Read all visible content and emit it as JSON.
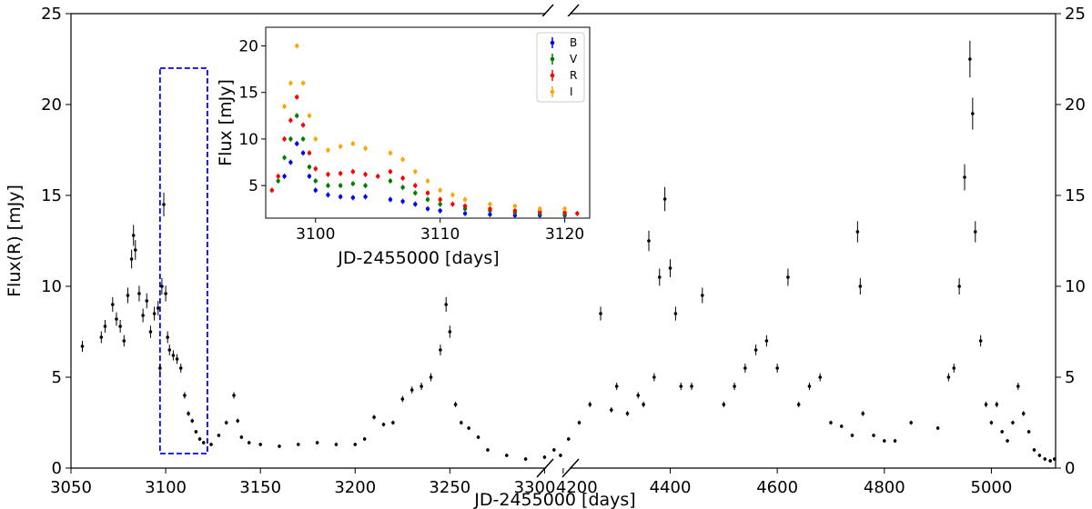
{
  "chart_data": [
    {
      "type": "scatter",
      "xlabel": "JD-2455000 [days]",
      "ylabel": "Flux(R) [mJy]",
      "ylim": [
        0,
        25
      ],
      "yticks": [
        0,
        5,
        10,
        15,
        20,
        25
      ],
      "broken_x_axis": true,
      "x_segments": [
        {
          "xlim": [
            3050,
            3307
          ],
          "xticks": [
            3050,
            3100,
            3150,
            3200,
            3250,
            3300
          ]
        },
        {
          "xlim": [
            4190,
            5120
          ],
          "xticks": [
            4200,
            4400,
            4600,
            4800,
            5000
          ]
        }
      ],
      "highlight_box": {
        "x": [
          3097,
          3122
        ],
        "y": [
          0.8,
          22.0
        ],
        "color": "#0000ff",
        "style": "dashed"
      },
      "series": [
        {
          "color": "#000000",
          "points": [
            [
              3056,
              6.7
            ],
            [
              3066,
              7.2
            ],
            [
              3068,
              7.8
            ],
            [
              3072,
              9.0
            ],
            [
              3074,
              8.2
            ],
            [
              3076,
              7.8
            ],
            [
              3078,
              7.0
            ],
            [
              3080,
              9.5
            ],
            [
              3082,
              11.5
            ],
            [
              3083,
              12.8
            ],
            [
              3084,
              12.0
            ],
            [
              3086,
              9.6
            ],
            [
              3088,
              8.4
            ],
            [
              3090,
              9.2
            ],
            [
              3092,
              7.5
            ],
            [
              3094,
              8.5
            ],
            [
              3096,
              8.8
            ],
            [
              3097,
              5.5
            ],
            [
              3098,
              10.0
            ],
            [
              3099,
              14.5
            ],
            [
              3100,
              9.6
            ],
            [
              3101,
              7.2
            ],
            [
              3102,
              6.5
            ],
            [
              3104,
              6.2
            ],
            [
              3106,
              6.0
            ],
            [
              3108,
              5.5
            ],
            [
              3110,
              4.0
            ],
            [
              3112,
              3.0
            ],
            [
              3114,
              2.6
            ],
            [
              3116,
              2.0
            ],
            [
              3118,
              1.6
            ],
            [
              3120,
              1.4
            ],
            [
              3124,
              1.3
            ],
            [
              3128,
              1.8
            ],
            [
              3132,
              2.5
            ],
            [
              3136,
              4.0
            ],
            [
              3138,
              2.6
            ],
            [
              3140,
              1.7
            ],
            [
              3144,
              1.4
            ],
            [
              3150,
              1.3
            ],
            [
              3160,
              1.2
            ],
            [
              3170,
              1.3
            ],
            [
              3180,
              1.4
            ],
            [
              3190,
              1.3
            ],
            [
              3200,
              1.3
            ],
            [
              3205,
              1.6
            ],
            [
              3210,
              2.8
            ],
            [
              3215,
              2.4
            ],
            [
              3220,
              2.5
            ],
            [
              3225,
              3.8
            ],
            [
              3230,
              4.3
            ],
            [
              3235,
              4.5
            ],
            [
              3240,
              5.0
            ],
            [
              3245,
              6.5
            ],
            [
              3248,
              9.0
            ],
            [
              3250,
              7.5
            ],
            [
              3253,
              3.5
            ],
            [
              3256,
              2.5
            ],
            [
              3260,
              2.2
            ],
            [
              3265,
              1.7
            ],
            [
              3270,
              1.0
            ],
            [
              3280,
              0.7
            ],
            [
              3290,
              0.5
            ],
            [
              3300,
              0.6
            ],
            [
              3305,
              1.0
            ],
            [
              4195,
              0.7
            ],
            [
              4210,
              1.6
            ],
            [
              4230,
              2.5
            ],
            [
              4250,
              3.5
            ],
            [
              4270,
              8.5
            ],
            [
              4290,
              3.2
            ],
            [
              4300,
              4.5
            ],
            [
              4320,
              3.0
            ],
            [
              4340,
              4.0
            ],
            [
              4350,
              3.5
            ],
            [
              4360,
              12.5
            ],
            [
              4370,
              5.0
            ],
            [
              4380,
              10.5
            ],
            [
              4390,
              14.8
            ],
            [
              4400,
              11.0
            ],
            [
              4410,
              8.5
            ],
            [
              4420,
              4.5
            ],
            [
              4440,
              4.5
            ],
            [
              4460,
              9.5
            ],
            [
              4500,
              3.5
            ],
            [
              4520,
              4.5
            ],
            [
              4540,
              5.5
            ],
            [
              4560,
              6.5
            ],
            [
              4580,
              7.0
            ],
            [
              4600,
              5.5
            ],
            [
              4620,
              10.5
            ],
            [
              4640,
              3.5
            ],
            [
              4660,
              4.5
            ],
            [
              4680,
              5.0
            ],
            [
              4700,
              2.5
            ],
            [
              4720,
              2.3
            ],
            [
              4740,
              1.8
            ],
            [
              4750,
              13.0
            ],
            [
              4755,
              10.0
            ],
            [
              4760,
              3.0
            ],
            [
              4780,
              1.8
            ],
            [
              4800,
              1.5
            ],
            [
              4820,
              1.5
            ],
            [
              4850,
              2.5
            ],
            [
              4900,
              2.2
            ],
            [
              4920,
              5.0
            ],
            [
              4930,
              5.5
            ],
            [
              4940,
              10.0
            ],
            [
              4950,
              16.0
            ],
            [
              4960,
              22.5
            ],
            [
              4965,
              19.5
            ],
            [
              4970,
              13.0
            ],
            [
              4980,
              7.0
            ],
            [
              4990,
              3.5
            ],
            [
              5000,
              2.5
            ],
            [
              5010,
              3.5
            ],
            [
              5020,
              2.0
            ],
            [
              5030,
              1.5
            ],
            [
              5040,
              2.5
            ],
            [
              5050,
              4.5
            ],
            [
              5060,
              3.0
            ],
            [
              5070,
              2.0
            ],
            [
              5080,
              1.0
            ],
            [
              5090,
              0.7
            ],
            [
              5100,
              0.5
            ],
            [
              5110,
              0.4
            ],
            [
              5118,
              0.5
            ]
          ]
        }
      ]
    },
    {
      "type": "scatter",
      "xlabel": "JD-2455000 [days]",
      "ylabel": "Flux [mJy]",
      "xlim": [
        3096,
        3122
      ],
      "ylim": [
        1.5,
        22
      ],
      "xticks": [
        3100,
        3110,
        3120
      ],
      "yticks": [
        5,
        10,
        15,
        20
      ],
      "legend": "top-right",
      "series": [
        {
          "name": "B",
          "color": "#0000ff",
          "points": [
            [
              3097.5,
              6.0
            ],
            [
              3098,
              7.5
            ],
            [
              3098.5,
              9.5
            ],
            [
              3099,
              8.5
            ],
            [
              3099.5,
              6.0
            ],
            [
              3100,
              4.5
            ],
            [
              3101,
              4.0
            ],
            [
              3102,
              3.8
            ],
            [
              3103,
              3.7
            ],
            [
              3104,
              3.8
            ],
            [
              3106,
              3.5
            ],
            [
              3107,
              3.3
            ],
            [
              3108,
              3.0
            ],
            [
              3109,
              2.5
            ],
            [
              3110,
              2.3
            ],
            [
              3112,
              2.0
            ],
            [
              3114,
              1.9
            ],
            [
              3116,
              1.8
            ],
            [
              3118,
              1.8
            ],
            [
              3120,
              1.8
            ]
          ]
        },
        {
          "name": "V",
          "color": "#008000",
          "points": [
            [
              3097,
              5.5
            ],
            [
              3097.5,
              8.0
            ],
            [
              3098,
              10.0
            ],
            [
              3098.5,
              12.5
            ],
            [
              3099,
              10.0
            ],
            [
              3099.5,
              7.0
            ],
            [
              3100,
              5.5
            ],
            [
              3101,
              5.0
            ],
            [
              3102,
              5.0
            ],
            [
              3103,
              5.2
            ],
            [
              3104,
              5.0
            ],
            [
              3106,
              5.5
            ],
            [
              3107,
              4.8
            ],
            [
              3108,
              4.2
            ],
            [
              3109,
              3.5
            ],
            [
              3110,
              3.0
            ],
            [
              3112,
              2.5
            ],
            [
              3114,
              2.3
            ],
            [
              3116,
              2.1
            ],
            [
              3118,
              2.0
            ],
            [
              3120,
              1.9
            ]
          ]
        },
        {
          "name": "R",
          "color": "#ff0000",
          "points": [
            [
              3096.5,
              4.5
            ],
            [
              3097,
              6.0
            ],
            [
              3097.5,
              10.0
            ],
            [
              3098,
              12.0
            ],
            [
              3098.5,
              14.5
            ],
            [
              3099,
              11.5
            ],
            [
              3099.5,
              8.5
            ],
            [
              3100,
              6.8
            ],
            [
              3101,
              6.2
            ],
            [
              3102,
              6.3
            ],
            [
              3103,
              6.5
            ],
            [
              3104,
              6.2
            ],
            [
              3105,
              6.0
            ],
            [
              3106,
              6.5
            ],
            [
              3107,
              5.8
            ],
            [
              3108,
              5.0
            ],
            [
              3109,
              4.2
            ],
            [
              3110,
              3.5
            ],
            [
              3111,
              3.0
            ],
            [
              3112,
              2.8
            ],
            [
              3114,
              2.5
            ],
            [
              3116,
              2.3
            ],
            [
              3118,
              2.2
            ],
            [
              3120,
              2.1
            ],
            [
              3121,
              2.0
            ]
          ]
        },
        {
          "name": "I",
          "color": "#ffa500",
          "points": [
            [
              3097.5,
              13.5
            ],
            [
              3098,
              16.0
            ],
            [
              3098.5,
              20.0
            ],
            [
              3099,
              16.0
            ],
            [
              3099.5,
              12.5
            ],
            [
              3100,
              10.0
            ],
            [
              3101,
              8.8
            ],
            [
              3102,
              9.2
            ],
            [
              3103,
              9.5
            ],
            [
              3104,
              9.0
            ],
            [
              3106,
              8.5
            ],
            [
              3107,
              7.8
            ],
            [
              3108,
              6.5
            ],
            [
              3109,
              5.5
            ],
            [
              3110,
              4.5
            ],
            [
              3111,
              4.0
            ],
            [
              3112,
              3.5
            ],
            [
              3114,
              3.0
            ],
            [
              3116,
              2.8
            ],
            [
              3118,
              2.5
            ],
            [
              3120,
              2.5
            ]
          ]
        }
      ]
    }
  ]
}
